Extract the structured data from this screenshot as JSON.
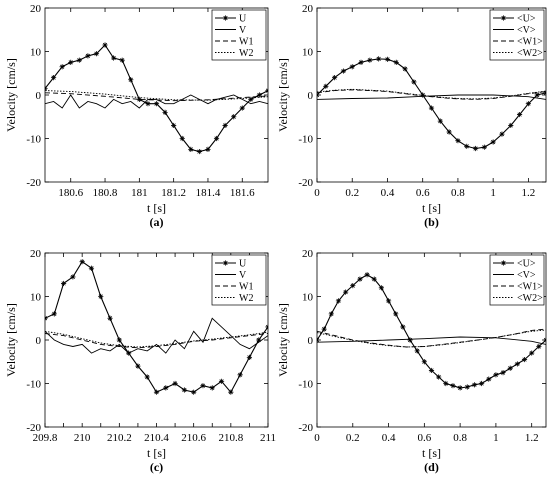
{
  "chart_data": [
    {
      "type": "line",
      "caption": "(a)",
      "xlabel": "t [s]",
      "ylabel": "Velocity [cm/s]",
      "xlim": [
        180.45,
        181.75
      ],
      "ylim": [
        -20,
        20
      ],
      "xticks": [
        180.6,
        180.8,
        181,
        181.2,
        181.4,
        181.6
      ],
      "yticks": [
        -20,
        -10,
        0,
        10,
        20
      ],
      "grid": false,
      "legend_position": "top-right",
      "series": [
        {
          "name": "U",
          "style": "solid-star",
          "x": [
            180.45,
            180.5,
            180.55,
            180.6,
            180.65,
            180.7,
            180.75,
            180.8,
            180.85,
            180.9,
            180.95,
            181.0,
            181.05,
            181.1,
            181.15,
            181.2,
            181.25,
            181.3,
            181.35,
            181.4,
            181.45,
            181.5,
            181.55,
            181.6,
            181.65,
            181.7,
            181.75
          ],
          "values": [
            1.5,
            4,
            6.5,
            7.5,
            8,
            9,
            9.5,
            11.5,
            8.5,
            8,
            3.5,
            -1,
            -2,
            -2,
            -4,
            -7,
            -10,
            -12.5,
            -13,
            -12.5,
            -10,
            -7,
            -5,
            -3,
            -1,
            0,
            1
          ]
        },
        {
          "name": "V",
          "style": "solid",
          "x": [
            180.45,
            180.5,
            180.55,
            180.6,
            180.65,
            180.7,
            180.75,
            180.8,
            180.85,
            180.9,
            180.95,
            181.0,
            181.05,
            181.1,
            181.15,
            181.2,
            181.25,
            181.3,
            181.35,
            181.4,
            181.45,
            181.5,
            181.55,
            181.6,
            181.65,
            181.7,
            181.75
          ],
          "values": [
            -2,
            -1.5,
            -3,
            0,
            -3,
            -1.5,
            -2,
            -3,
            -1,
            -2,
            -1.5,
            -3,
            -1,
            -1,
            -2,
            -2,
            -1,
            0,
            -1,
            -2,
            -1,
            -0.5,
            0,
            -1,
            -2,
            -1.5,
            -2
          ]
        },
        {
          "name": "W1",
          "style": "dashed",
          "x": [
            180.45,
            180.6,
            180.8,
            181.0,
            181.2,
            181.4,
            181.6,
            181.75
          ],
          "values": [
            0.5,
            0.3,
            -0.3,
            -1,
            -1.3,
            -1.1,
            -0.6,
            -0.2
          ]
        },
        {
          "name": "W2",
          "style": "dotted",
          "x": [
            180.45,
            180.6,
            180.8,
            181.0,
            181.2,
            181.4,
            181.6,
            181.75
          ],
          "values": [
            1,
            0.8,
            0.2,
            -0.6,
            -1.1,
            -1.2,
            -0.8,
            -0.4
          ]
        }
      ]
    },
    {
      "type": "line",
      "caption": "(b)",
      "xlabel": "t [s]",
      "ylabel": "Velocity [cm/s]",
      "xlim": [
        0,
        1.3
      ],
      "ylim": [
        -20,
        20
      ],
      "xticks": [
        0,
        0.2,
        0.4,
        0.6,
        0.8,
        1,
        1.2
      ],
      "yticks": [
        -20,
        -10,
        0,
        10,
        20
      ],
      "grid": false,
      "legend_position": "top-right",
      "series": [
        {
          "name": "<U>",
          "style": "solid-star",
          "x": [
            0,
            0.05,
            0.1,
            0.15,
            0.2,
            0.25,
            0.3,
            0.35,
            0.4,
            0.45,
            0.5,
            0.55,
            0.6,
            0.65,
            0.7,
            0.75,
            0.8,
            0.85,
            0.9,
            0.95,
            1.0,
            1.05,
            1.1,
            1.15,
            1.2,
            1.25,
            1.3
          ],
          "values": [
            0,
            2,
            4,
            5.5,
            6.5,
            7.5,
            8,
            8.3,
            8.2,
            7.5,
            6,
            3,
            0,
            -3,
            -6,
            -8.5,
            -10.5,
            -11.8,
            -12.3,
            -12,
            -10.8,
            -9,
            -7,
            -4.5,
            -2,
            0,
            0.5
          ]
        },
        {
          "name": "<V>",
          "style": "solid",
          "x": [
            0,
            0.2,
            0.4,
            0.6,
            0.8,
            1.0,
            1.2,
            1.3
          ],
          "values": [
            -1,
            -0.8,
            -0.7,
            -0.3,
            0,
            0,
            -0.4,
            -1
          ]
        },
        {
          "name": "<W1>",
          "style": "dashed",
          "x": [
            0,
            0.1,
            0.2,
            0.3,
            0.4,
            0.5,
            0.6,
            0.7,
            0.8,
            0.9,
            1.0,
            1.1,
            1.2,
            1.3
          ],
          "values": [
            0.5,
            1,
            1.2,
            1,
            0.8,
            0.3,
            -0.2,
            -0.6,
            -0.9,
            -1,
            -0.8,
            -0.3,
            0.3,
            0.8
          ]
        },
        {
          "name": "<W2>",
          "style": "dotted",
          "x": [
            0,
            0.1,
            0.2,
            0.3,
            0.4,
            0.5,
            0.6,
            0.7,
            0.8,
            0.9,
            1.0,
            1.1,
            1.2,
            1.3
          ],
          "values": [
            0.7,
            1.1,
            1.3,
            1.1,
            0.9,
            0.4,
            -0.1,
            -0.5,
            -0.8,
            -0.9,
            -0.7,
            -0.2,
            0.4,
            0.9
          ]
        }
      ]
    },
    {
      "type": "line",
      "caption": "(c)",
      "xlabel": "t [s]",
      "ylabel": "Velocity [cm/s]",
      "xlim": [
        209.8,
        211
      ],
      "ylim": [
        -20,
        20
      ],
      "xticks": [
        209.8,
        209.9,
        210,
        210.1,
        210.2,
        210.3,
        210.4,
        210.5,
        210.6,
        210.7,
        210.8,
        210.9,
        211
      ],
      "xticklabels": [
        "209.8",
        "210",
        "210.2",
        "210.4",
        "210.6",
        "210.8",
        "211"
      ],
      "yticks": [
        -20,
        -10,
        0,
        10,
        20
      ],
      "grid": false,
      "legend_position": "top-right",
      "series": [
        {
          "name": "U",
          "style": "solid-star",
          "x": [
            209.8,
            209.85,
            209.9,
            209.95,
            210.0,
            210.05,
            210.1,
            210.15,
            210.2,
            210.25,
            210.3,
            210.35,
            210.4,
            210.45,
            210.5,
            210.55,
            210.6,
            210.65,
            210.7,
            210.75,
            210.8,
            210.85,
            210.9,
            210.95,
            211.0
          ],
          "values": [
            5,
            6,
            13,
            14.5,
            18,
            16.5,
            10,
            5,
            0,
            -3,
            -6,
            -8.5,
            -12,
            -11,
            -10,
            -11.5,
            -12,
            -10.5,
            -11,
            -9.5,
            -12,
            -8,
            -4,
            0,
            3
          ]
        },
        {
          "name": "V",
          "style": "solid",
          "x": [
            209.8,
            209.85,
            209.9,
            209.95,
            210.0,
            210.05,
            210.1,
            210.15,
            210.2,
            210.25,
            210.3,
            210.35,
            210.4,
            210.45,
            210.5,
            210.55,
            210.6,
            210.65,
            210.7,
            210.75,
            210.8,
            210.85,
            210.9,
            210.95,
            211.0
          ],
          "values": [
            2,
            0,
            -1,
            -1.5,
            -1,
            -3,
            -2,
            -2.5,
            -1,
            -3,
            -2,
            -2.5,
            -1,
            -3,
            0,
            -2,
            2,
            -0.5,
            5,
            3,
            1,
            -1,
            -2,
            -0.5,
            1
          ]
        },
        {
          "name": "W1",
          "style": "dashed",
          "x": [
            209.8,
            209.9,
            210.0,
            210.1,
            210.2,
            210.3,
            210.4,
            210.5,
            210.6,
            210.7,
            210.8,
            210.9,
            211.0
          ],
          "values": [
            1.5,
            1,
            0,
            -1,
            -1.5,
            -1.8,
            -1.5,
            -1,
            -0.3,
            0,
            0.5,
            1,
            1.5
          ]
        },
        {
          "name": "W2",
          "style": "dotted",
          "x": [
            209.8,
            209.9,
            210.0,
            210.1,
            210.2,
            210.3,
            210.4,
            210.5,
            210.6,
            210.7,
            210.8,
            210.9,
            211.0
          ],
          "values": [
            2,
            1.3,
            0.3,
            -0.7,
            -1.3,
            -1.6,
            -1.3,
            -0.8,
            -0.2,
            0.2,
            0.7,
            1.2,
            1.8
          ]
        }
      ]
    },
    {
      "type": "line",
      "caption": "(d)",
      "xlabel": "t [s]",
      "ylabel": "Velocity [cm/s]",
      "xlim": [
        0,
        1.28
      ],
      "ylim": [
        -20,
        20
      ],
      "xticks": [
        0,
        0.2,
        0.4,
        0.6,
        0.8,
        1,
        1.2
      ],
      "yticks": [
        -20,
        -10,
        0,
        10,
        20
      ],
      "grid": false,
      "legend_position": "top-right",
      "series": [
        {
          "name": "<U>",
          "style": "solid-star",
          "x": [
            0,
            0.04,
            0.08,
            0.12,
            0.16,
            0.2,
            0.24,
            0.28,
            0.32,
            0.36,
            0.4,
            0.44,
            0.48,
            0.52,
            0.56,
            0.6,
            0.64,
            0.68,
            0.72,
            0.76,
            0.8,
            0.84,
            0.88,
            0.92,
            0.96,
            1.0,
            1.04,
            1.08,
            1.12,
            1.16,
            1.2,
            1.24,
            1.28
          ],
          "values": [
            0,
            2.5,
            6,
            9,
            11,
            12.5,
            14,
            15,
            14,
            12,
            9,
            6,
            3,
            0,
            -2.5,
            -5,
            -7,
            -8.5,
            -10,
            -10.5,
            -11,
            -10.8,
            -10.3,
            -10,
            -9,
            -8,
            -7.5,
            -6.5,
            -5.5,
            -4.5,
            -3,
            -1.5,
            0
          ]
        },
        {
          "name": "<V>",
          "style": "solid",
          "x": [
            0,
            0.2,
            0.4,
            0.6,
            0.8,
            1.0,
            1.2,
            1.28
          ],
          "values": [
            -0.5,
            -0.3,
            0,
            0.3,
            0.7,
            0.5,
            -0.3,
            -1
          ]
        },
        {
          "name": "<W1>",
          "style": "dashed",
          "x": [
            0,
            0.1,
            0.2,
            0.3,
            0.4,
            0.5,
            0.6,
            0.7,
            0.8,
            0.9,
            1.0,
            1.1,
            1.2,
            1.28
          ],
          "values": [
            2,
            1,
            0,
            -0.7,
            -1.2,
            -1.6,
            -1.5,
            -1,
            -0.5,
            0,
            0.6,
            1.3,
            2.2,
            2.5
          ]
        },
        {
          "name": "<W2>",
          "style": "dotted",
          "x": [
            0,
            0.1,
            0.2,
            0.3,
            0.4,
            0.5,
            0.6,
            0.7,
            0.8,
            0.9,
            1.0,
            1.1,
            1.2,
            1.28
          ],
          "values": [
            1.7,
            0.8,
            -0.1,
            -0.8,
            -1.3,
            -1.6,
            -1.5,
            -1.1,
            -0.6,
            0,
            0.6,
            1.3,
            2,
            2.3
          ]
        }
      ]
    }
  ]
}
